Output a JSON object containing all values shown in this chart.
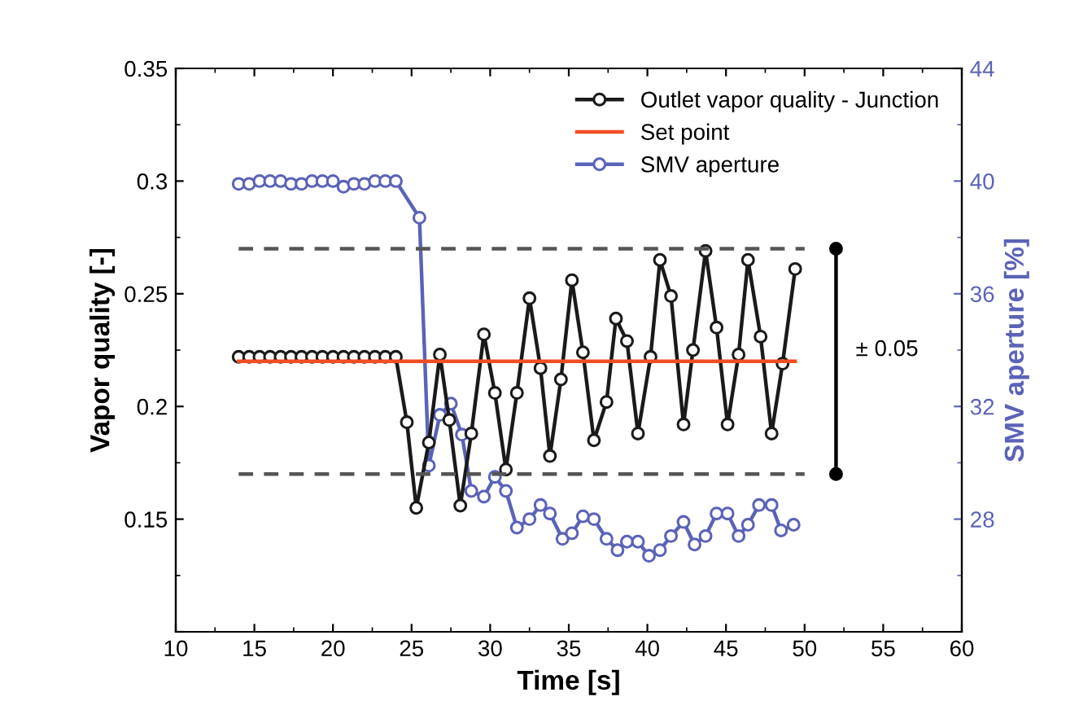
{
  "chart_data": {
    "type": "line",
    "xlabel": "Time [s]",
    "ylabel": "Vapor quality [-]",
    "y2label": "SMV aperture [%]",
    "xlim": [
      10,
      60
    ],
    "xticks": [
      10,
      15,
      20,
      25,
      30,
      35,
      40,
      45,
      50,
      55,
      60
    ],
    "ylim": [
      0.1,
      0.35
    ],
    "yticks": [
      {
        "value": 0.1,
        "label": null
      },
      0.15,
      0.2,
      0.25,
      0.3,
      0.35
    ],
    "y2lim": [
      24,
      44
    ],
    "y2ticks": [
      {
        "value": 24,
        "label": null
      },
      28,
      32,
      36,
      40,
      44
    ],
    "grid": false,
    "legend": "top right",
    "annotations": [
      "± 0.05"
    ],
    "series": [
      {
        "name": "Outlet vapor quality - Junction",
        "color": "#1a1a1a",
        "marker": "circle",
        "line_style": "solid",
        "x": [
          14.0,
          14.67,
          15.33,
          16.0,
          16.67,
          17.33,
          18.0,
          18.67,
          19.33,
          20.0,
          20.67,
          21.33,
          22.0,
          22.67,
          23.33,
          24.0,
          24.7,
          25.3,
          26.1,
          26.8,
          27.4,
          28.1,
          28.8,
          29.6,
          30.3,
          31.0,
          31.7,
          32.5,
          33.2,
          33.8,
          34.5,
          35.2,
          35.9,
          36.6,
          37.4,
          38.0,
          38.7,
          39.4,
          40.2,
          40.8,
          41.5,
          42.3,
          42.9,
          43.7,
          44.4,
          45.1,
          45.8,
          46.4,
          47.2,
          47.9,
          48.6,
          49.4
        ],
        "values": [
          0.222,
          0.222,
          0.222,
          0.222,
          0.222,
          0.222,
          0.222,
          0.222,
          0.222,
          0.222,
          0.222,
          0.222,
          0.222,
          0.222,
          0.222,
          0.222,
          0.193,
          0.155,
          0.184,
          0.223,
          0.194,
          0.156,
          0.188,
          0.232,
          0.206,
          0.172,
          0.206,
          0.248,
          0.217,
          0.178,
          0.212,
          0.256,
          0.224,
          0.185,
          0.202,
          0.239,
          0.229,
          0.188,
          0.222,
          0.265,
          0.249,
          0.192,
          0.225,
          0.269,
          0.235,
          0.192,
          0.223,
          0.265,
          0.231,
          0.188,
          0.219,
          0.261
        ]
      },
      {
        "name": "Set point",
        "color": "#f04e23",
        "marker": "none",
        "line_style": "solid",
        "x": [
          14.0,
          49.4
        ],
        "values": [
          0.22,
          0.22
        ]
      },
      {
        "name": "SMV aperture",
        "color": "#5a63b8",
        "marker": "circle",
        "line_style": "solid",
        "axis": "y2",
        "x": [
          14.0,
          14.67,
          15.33,
          16.0,
          16.67,
          17.33,
          18.0,
          18.67,
          19.33,
          20.0,
          20.67,
          21.33,
          22.0,
          22.67,
          23.33,
          24.0,
          25.5,
          26.1,
          26.8,
          27.5,
          28.2,
          28.8,
          29.6,
          30.3,
          31.0,
          31.7,
          32.5,
          33.2,
          33.8,
          34.6,
          35.2,
          35.9,
          36.6,
          37.4,
          38.1,
          38.7,
          39.4,
          40.1,
          40.8,
          41.5,
          42.3,
          43.0,
          43.7,
          44.4,
          45.1,
          45.8,
          46.4,
          47.1,
          47.9,
          48.5,
          49.3
        ],
        "values": [
          39.9,
          39.9,
          40.0,
          40.0,
          40.0,
          39.9,
          39.9,
          40.0,
          40.0,
          40.0,
          39.8,
          39.9,
          39.9,
          40.0,
          40.0,
          40.0,
          38.7,
          29.9,
          31.7,
          32.1,
          31.0,
          29.0,
          28.8,
          29.5,
          29.0,
          27.7,
          28.0,
          28.5,
          28.2,
          27.3,
          27.5,
          28.1,
          28.0,
          27.3,
          26.9,
          27.2,
          27.2,
          26.7,
          26.9,
          27.4,
          27.9,
          27.1,
          27.4,
          28.2,
          28.2,
          27.4,
          27.8,
          28.5,
          28.5,
          27.6,
          27.8
        ]
      },
      {
        "color": "#555555",
        "marker": "none",
        "line_style": "dashed",
        "x": [
          14.0,
          50.0
        ],
        "values": [
          0.27,
          0.27
        ]
      },
      {
        "color": "#555555",
        "marker": "none",
        "line_style": "dashed",
        "x": [
          14.0,
          50.0
        ],
        "values": [
          0.17,
          0.17
        ]
      },
      {
        "color": "#000000",
        "marker": "circle",
        "line_style": "solid",
        "x": [
          52.0,
          52.0
        ],
        "values": [
          0.17,
          0.27
        ]
      }
    ]
  }
}
